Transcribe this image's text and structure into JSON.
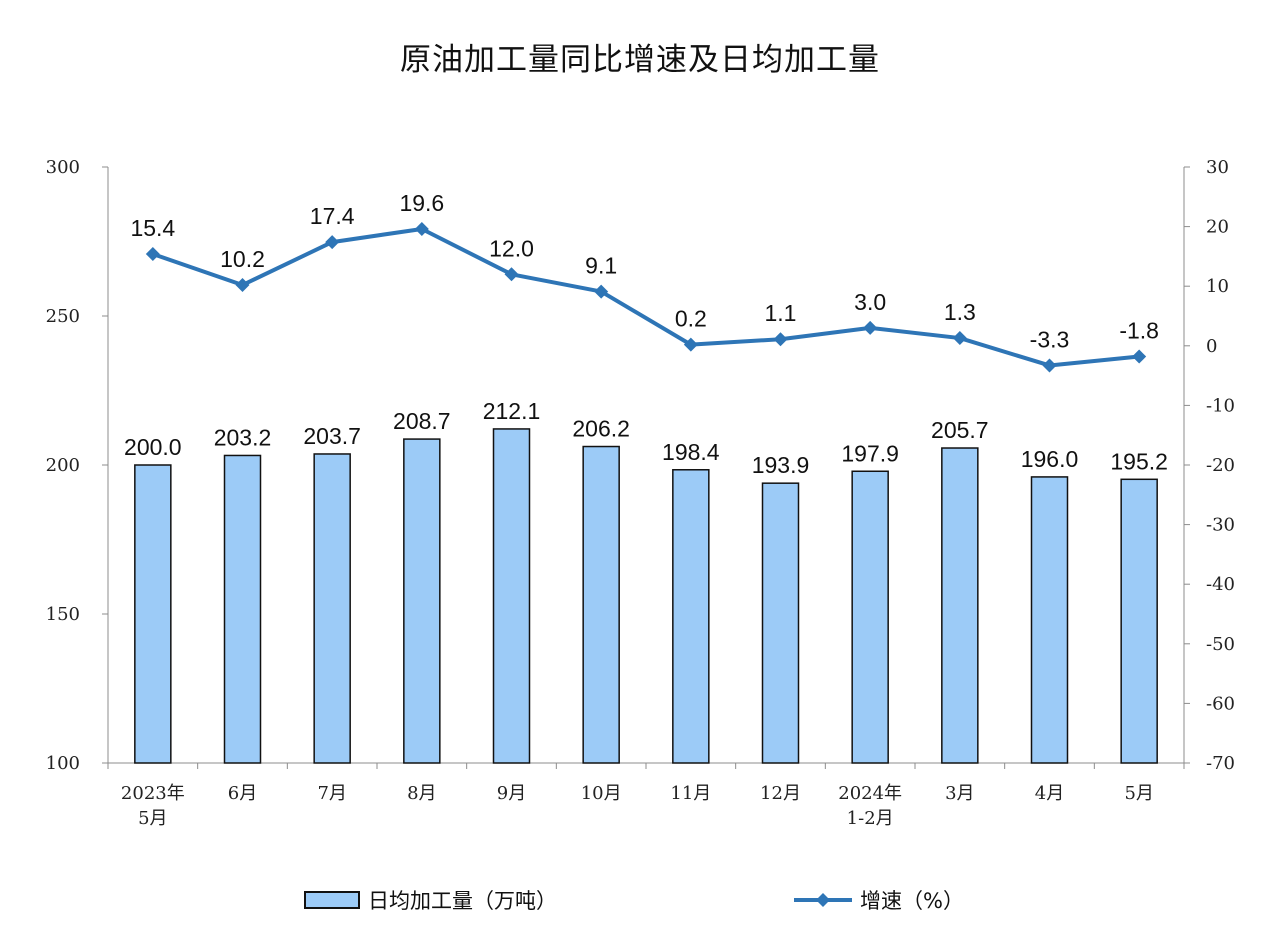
{
  "chart_data": {
    "type": "bar",
    "title": "原油加工量同比增速及日均加工量",
    "categories": [
      [
        "2023年",
        "5月"
      ],
      [
        "6月"
      ],
      [
        "7月"
      ],
      [
        "8月"
      ],
      [
        "9月"
      ],
      [
        "10月"
      ],
      [
        "11月"
      ],
      [
        "12月"
      ],
      [
        "2024年",
        "1-2月"
      ],
      [
        "3月"
      ],
      [
        "4月"
      ],
      [
        "5月"
      ]
    ],
    "left_axis": {
      "ylim": [
        100,
        300
      ],
      "ticks": [
        100,
        150,
        200,
        250,
        300
      ]
    },
    "right_axis": {
      "ylim": [
        -70,
        30
      ],
      "ticks": [
        30,
        20,
        10,
        0,
        -10,
        -20,
        -30,
        -40,
        -50,
        -60,
        -70
      ]
    },
    "series": [
      {
        "name": "日均加工量（万吨）",
        "type": "bar",
        "axis": "left",
        "values": [
          200.0,
          203.2,
          203.7,
          208.7,
          212.1,
          206.2,
          198.4,
          193.9,
          197.9,
          205.7,
          196.0,
          195.2
        ],
        "labels": [
          "200.0",
          "203.2",
          "203.7",
          "208.7",
          "212.1",
          "206.2",
          "198.4",
          "193.9",
          "197.9",
          "205.7",
          "196.0",
          "195.2"
        ],
        "color": "#9ccbf7"
      },
      {
        "name": "增速（%）",
        "type": "line",
        "axis": "right",
        "values": [
          15.4,
          10.2,
          17.4,
          19.6,
          12.0,
          9.1,
          0.2,
          1.1,
          3.0,
          1.3,
          -3.3,
          -1.8
        ],
        "labels": [
          "15.4",
          "10.2",
          "17.4",
          "19.6",
          "12.0",
          "9.1",
          "0.2",
          "1.1",
          "3.0",
          "1.3",
          "-3.3",
          "-1.8"
        ],
        "color": "#2e75b6"
      }
    ],
    "grid": false,
    "legend_position": "bottom"
  }
}
